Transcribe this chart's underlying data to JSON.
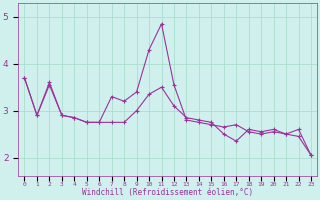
{
  "xlabel": "Windchill (Refroidissement éolien,°C)",
  "background_color": "#d0f0ee",
  "line_color": "#993399",
  "grid_color": "#aaddcc",
  "x_data": [
    0,
    1,
    2,
    3,
    4,
    5,
    6,
    7,
    8,
    9,
    10,
    11,
    12,
    13,
    14,
    15,
    16,
    17,
    18,
    19,
    20,
    21,
    22,
    23
  ],
  "y_line1": [
    3.7,
    2.9,
    3.6,
    2.9,
    2.85,
    2.75,
    2.75,
    3.3,
    3.2,
    3.4,
    4.3,
    4.85,
    3.55,
    2.8,
    2.75,
    2.7,
    2.65,
    2.7,
    2.55,
    2.5,
    2.55,
    2.5,
    2.6,
    2.05
  ],
  "y_line2": [
    3.7,
    2.9,
    3.55,
    2.9,
    2.85,
    2.75,
    2.75,
    2.75,
    2.75,
    3.0,
    3.35,
    3.5,
    3.1,
    2.85,
    2.8,
    2.75,
    2.5,
    2.35,
    2.6,
    2.55,
    2.6,
    2.5,
    2.45,
    2.05
  ],
  "ylim": [
    1.6,
    5.3
  ],
  "yticks": [
    2,
    3,
    4,
    5
  ],
  "xlim": [
    -0.5,
    23.5
  ],
  "figsize": [
    3.2,
    2.0
  ],
  "dpi": 100
}
